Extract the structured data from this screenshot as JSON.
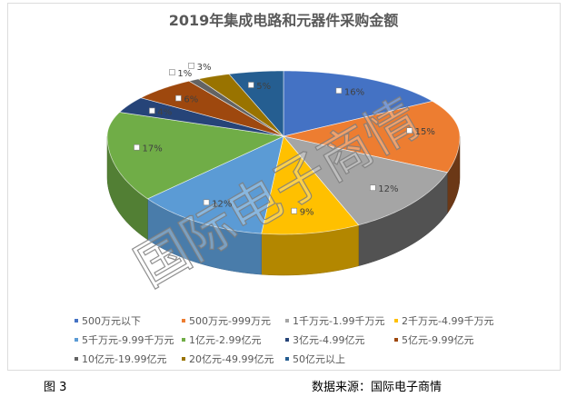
{
  "chart_data": {
    "type": "pie",
    "three_d": true,
    "title": "2019年集成电路和元器件采购金额",
    "categories": [
      "500万元以下",
      "500万元-999万元",
      "1千万元-1.99千万元",
      "2千万元-4.99千万元",
      "5千万元-9.99千万元",
      "1亿元-2.99亿元",
      "3亿元-4.99亿元",
      "5亿元-9.99亿元",
      "10亿元-19.99亿元",
      "20亿元-49.99亿元",
      "50亿元以上"
    ],
    "values": [
      16,
      15,
      12,
      9,
      12,
      17,
      4,
      6,
      1,
      3,
      5
    ],
    "unit": "%",
    "colors": [
      "#4472C4",
      "#ED7D31",
      "#A5A5A5",
      "#FFC000",
      "#5B9BD5",
      "#70AD47",
      "#264478",
      "#9E480E",
      "#636363",
      "#997300",
      "#255E91"
    ],
    "legend_placement": "bottom"
  },
  "caption": {
    "figure_label": "图 3",
    "source": "数据来源：国际电子商情"
  },
  "watermark": "国际电子商情"
}
